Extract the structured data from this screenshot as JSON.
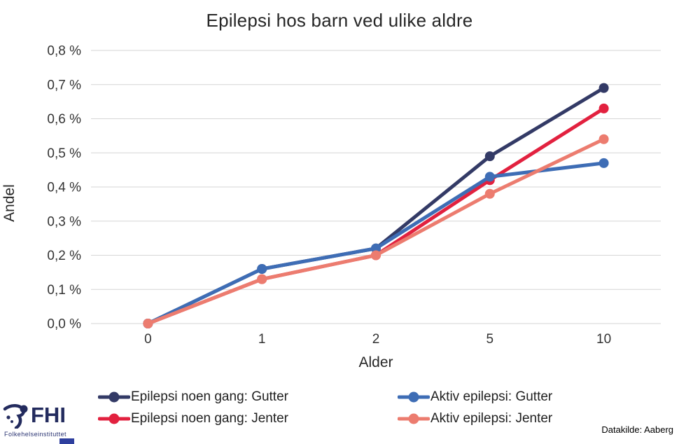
{
  "title": "Epilepsi hos barn ved ulike aldre",
  "axes": {
    "y_label": "Andel",
    "x_label": "Alder"
  },
  "footer": {
    "source": "Datakilde: Aaberg"
  },
  "logo": {
    "name": "FHI",
    "subtext": "Folkehelseinstituttet",
    "color": "#232B5E"
  },
  "colors": {
    "grid": "#D6D6D6",
    "tick_text": "#333333",
    "background": "#FFFFFF"
  },
  "chart_data": {
    "type": "line",
    "title": "Epilepsi hos barn ved ulike aldre",
    "xlabel": "Alder",
    "ylabel": "Andel",
    "categories": [
      0,
      1,
      2,
      5,
      10
    ],
    "x_tick_labels": [
      "0",
      "1",
      "2",
      "5",
      "10"
    ],
    "ylim": [
      0,
      0.8
    ],
    "y_tick_labels": [
      "0,0 %",
      "0,1 %",
      "0,2 %",
      "0,3 %",
      "0,4 %",
      "0,5 %",
      "0,6 %",
      "0,7 %",
      "0,8 %"
    ],
    "grid": true,
    "legend_position": "bottom-two-columns",
    "series": [
      {
        "name": "Epilepsi noen gang: Gutter",
        "color": "#333A66",
        "values": [
          0.0,
          0.16,
          0.22,
          0.49,
          0.69
        ]
      },
      {
        "name": "Epilepsi noen gang: Jenter",
        "color": "#E2213F",
        "values": [
          0.0,
          0.13,
          0.2,
          0.42,
          0.63
        ]
      },
      {
        "name": "Aktiv epilepsi: Gutter",
        "color": "#3E6DB5",
        "values": [
          0.0,
          0.16,
          0.22,
          0.43,
          0.47
        ]
      },
      {
        "name": "Aktiv epilepsi: Jenter",
        "color": "#EC7C6F",
        "values": [
          0.0,
          0.13,
          0.2,
          0.38,
          0.54
        ]
      }
    ]
  }
}
